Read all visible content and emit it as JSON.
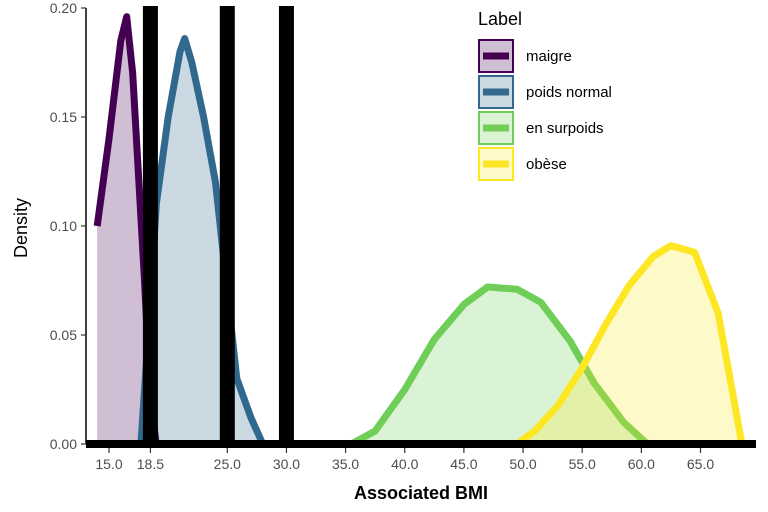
{
  "chart_data": {
    "type": "area",
    "xlabel": "Associated BMI",
    "ylabel": "Density",
    "xlim": [
      14.0,
      70.0
    ],
    "ylim": [
      0.0,
      0.2
    ],
    "x_ticks": [
      15.0,
      18.5,
      25.0,
      30.0,
      35.0,
      40.0,
      45.0,
      50.0,
      55.0,
      60.0,
      65.0
    ],
    "x_tick_labels": [
      "15.0",
      "18.5",
      "25.0",
      "30.0",
      "35.0",
      "40.0",
      "45.0",
      "50.0",
      "55.0",
      "60.0",
      "65.0"
    ],
    "y_ticks": [
      0.0,
      0.05,
      0.1,
      0.15,
      0.2
    ],
    "y_tick_labels": [
      "0.00",
      "0.05",
      "0.10",
      "0.15",
      "0.20"
    ],
    "vlines": [
      18.5,
      25.0,
      30.0
    ],
    "grid": false,
    "legend": {
      "title": "Label",
      "position": "top-right"
    },
    "series": [
      {
        "name": "maigre",
        "color": "#440154",
        "x": [
          14.0,
          15.0,
          16.0,
          16.5,
          17.0,
          18.0,
          18.5,
          19.0
        ],
        "y": [
          0.1,
          0.14,
          0.185,
          0.196,
          0.17,
          0.075,
          0.02,
          0.0
        ]
      },
      {
        "name": "poids normal",
        "color": "#31688E",
        "x": [
          17.7,
          18.5,
          19.0,
          20.0,
          21.0,
          21.4,
          22.0,
          23.0,
          24.0,
          25.0,
          25.8,
          27.0,
          28.0
        ],
        "y": [
          0.0,
          0.065,
          0.11,
          0.15,
          0.18,
          0.186,
          0.175,
          0.15,
          0.12,
          0.07,
          0.03,
          0.012,
          0.0
        ]
      },
      {
        "name": "en surpoids",
        "color": "#6ECE58",
        "x": [
          35.5,
          37.5,
          40.0,
          42.5,
          45.0,
          47.0,
          49.5,
          51.5,
          54.0,
          56.0,
          58.5,
          60.5
        ],
        "y": [
          0.0,
          0.006,
          0.025,
          0.048,
          0.064,
          0.072,
          0.071,
          0.065,
          0.047,
          0.028,
          0.01,
          0.0
        ]
      },
      {
        "name": "obèse",
        "color": "#FDE725",
        "x": [
          49.5,
          51.0,
          53.0,
          55.0,
          57.0,
          59.0,
          61.0,
          62.5,
          64.5,
          66.5,
          68.5
        ],
        "y": [
          0.0,
          0.006,
          0.018,
          0.035,
          0.055,
          0.073,
          0.086,
          0.091,
          0.088,
          0.06,
          0.0
        ]
      }
    ]
  }
}
